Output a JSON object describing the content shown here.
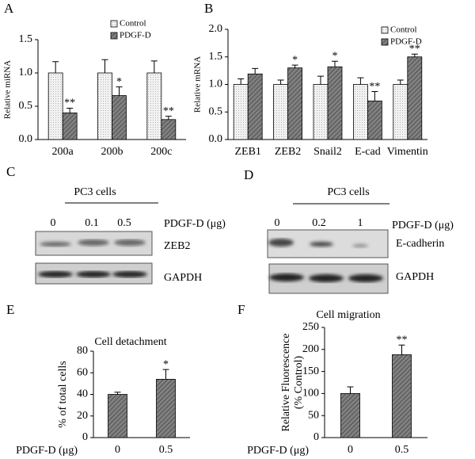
{
  "chart_data": [
    {
      "type": "bar",
      "panel": "A",
      "ylabel": "Relative miRNA",
      "categories": [
        "200a",
        "200b",
        "200c"
      ],
      "series": [
        {
          "name": "Control",
          "color": "#f2f2f2",
          "values": [
            1.0,
            1.0,
            1.0
          ],
          "errors": [
            0.17,
            0.2,
            0.18
          ],
          "annotations": [
            null,
            null,
            null
          ]
        },
        {
          "name": "PDGF-D",
          "color": "#808080",
          "values": [
            0.4,
            0.66,
            0.3
          ],
          "errors": [
            0.07,
            0.13,
            0.05
          ],
          "annotations": [
            "**",
            "*",
            "**"
          ]
        }
      ],
      "ylim": [
        0,
        1.5
      ],
      "yticks": [
        {
          "value": 0,
          "label": "0.0"
        },
        0.5,
        {
          "value": 1,
          "label": "1.0"
        },
        1.5
      ],
      "legend": "top-right"
    },
    {
      "type": "bar",
      "panel": "B",
      "ylabel": "Relative mRNA",
      "categories": [
        "ZEB1",
        "ZEB2",
        "Snail2",
        "E-cad",
        "Vimentin"
      ],
      "series": [
        {
          "name": "Control",
          "color": "#f2f2f2",
          "values": [
            1.0,
            1.0,
            1.0,
            1.0,
            1.0
          ],
          "errors": [
            0.1,
            0.08,
            0.15,
            0.12,
            0.08
          ],
          "annotations": [
            null,
            null,
            null,
            null,
            null
          ]
        },
        {
          "name": "PDGF-D",
          "color": "#808080",
          "values": [
            1.19,
            1.3,
            1.32,
            0.7,
            1.5
          ],
          "errors": [
            0.1,
            0.05,
            0.1,
            0.17,
            0.05
          ],
          "annotations": [
            null,
            "*",
            "*",
            "**",
            "**"
          ]
        }
      ],
      "ylim": [
        0,
        2
      ],
      "yticks": [
        {
          "value": 0,
          "label": "0.0"
        },
        0.5,
        {
          "value": 1,
          "label": "1.0"
        },
        1.5,
        {
          "value": 2,
          "label": "2.0"
        }
      ],
      "legend": "top-right"
    },
    {
      "type": "bar",
      "panel": "E",
      "title": "Cell detachment",
      "ylabel": "% of total cells",
      "xlabel": "PDGF-D (μg)",
      "categories": [
        "0",
        "0.5"
      ],
      "series": [
        {
          "color": "#808080",
          "values": [
            40,
            54
          ],
          "errors": [
            2,
            9
          ],
          "annotations": [
            null,
            "*"
          ]
        }
      ],
      "ylim": [
        0,
        80
      ],
      "yticks": [
        0,
        20,
        40,
        60,
        80
      ]
    },
    {
      "type": "bar",
      "panel": "F",
      "title": "Cell migration",
      "ylabel": [
        "Relative Fluorescence",
        "(% Control)"
      ],
      "xlabel": "PDGF-D (μg)",
      "categories": [
        "0",
        "0.5"
      ],
      "series": [
        {
          "color": "#808080",
          "values": [
            100,
            188
          ],
          "errors": [
            15,
            22
          ],
          "annotations": [
            null,
            "**"
          ]
        }
      ],
      "ylim": [
        0,
        250
      ],
      "yticks": [
        0,
        50,
        100,
        150,
        200,
        250
      ]
    }
  ],
  "blots": [
    {
      "panel": "C",
      "cells": "PC3 cells",
      "doses": [
        "0",
        "0.1",
        "0.5"
      ],
      "dose_label": "PDGF-D (μg)",
      "bands": [
        "ZEB2",
        "GAPDH"
      ]
    },
    {
      "panel": "D",
      "cells": "PC3 cells",
      "doses": [
        "0",
        "0.2",
        "1"
      ],
      "dose_label": "PDGF-D (μg)",
      "bands": [
        "E-cadherin",
        "GAPDH"
      ]
    }
  ]
}
